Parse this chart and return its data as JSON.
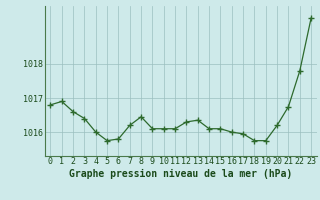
{
  "x": [
    0,
    1,
    2,
    3,
    4,
    5,
    6,
    7,
    8,
    9,
    10,
    11,
    12,
    13,
    14,
    15,
    16,
    17,
    18,
    19,
    20,
    21,
    22,
    23
  ],
  "y": [
    1016.8,
    1016.9,
    1016.6,
    1016.4,
    1016.0,
    1015.75,
    1015.8,
    1016.2,
    1016.45,
    1016.1,
    1016.1,
    1016.1,
    1016.3,
    1016.35,
    1016.1,
    1016.1,
    1016.0,
    1015.95,
    1015.75,
    1015.75,
    1016.2,
    1016.75,
    1017.8,
    1019.35
  ],
  "line_color": "#2d6a2d",
  "marker_color": "#2d6a2d",
  "bg_color": "#ceeaea",
  "grid_color": "#9bbfbf",
  "xlabel_text": "Graphe pression niveau de la mer (hPa)",
  "ylim_min": 1015.3,
  "ylim_max": 1019.7,
  "yticks": [
    1016,
    1017,
    1018
  ],
  "title_color": "#1a4a1a",
  "xlabel_fontsize": 7.0,
  "tick_fontsize": 6.0
}
